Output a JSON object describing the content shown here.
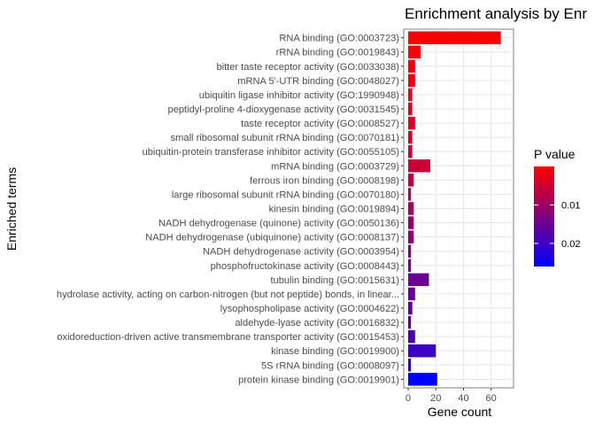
{
  "chart_data": {
    "type": "bar",
    "orientation": "horizontal",
    "title": "Enrichment analysis by Enr",
    "xlabel": "Gene count",
    "ylabel": "Enriched terms",
    "xlim": [
      0,
      73
    ],
    "xticks": [
      0,
      20,
      40,
      60
    ],
    "grid": true,
    "categories": [
      "RNA binding (GO:0003723)",
      "rRNA binding (GO:0019843)",
      "bitter taste receptor activity (GO:0033038)",
      "mRNA 5'-UTR binding (GO:0048027)",
      "ubiquitin ligase inhibitor activity (GO:1990948)",
      "peptidyl-proline 4-dioxygenase activity (GO:0031545)",
      "taste receptor activity (GO:0008527)",
      "small ribosomal subunit rRNA binding (GO:0070181)",
      "ubiquitin-protein transferase inhibitor activity (GO:0055105)",
      "mRNA binding (GO:0003729)",
      "ferrous iron binding (GO:0008198)",
      "large ribosomal subunit rRNA binding (GO:0070180)",
      "kinesin binding (GO:0019894)",
      "NADH dehydrogenase (quinone) activity (GO:0050136)",
      "NADH dehydrogenase (ubiquinone) activity (GO:0008137)",
      "NADH dehydrogenase activity (GO:0003954)",
      "phosphofructokinase activity (GO:0008443)",
      "tubulin binding (GO:0015631)",
      "hydrolase activity, acting on carbon-nitrogen (but not peptide) bonds, in linear...",
      "lysophospholipase activity (GO:0004622)",
      "aldehyde-lyase activity (GO:0016832)",
      "oxidoreduction-driven active transmembrane transporter activity (GO:0015453)",
      "kinase binding (GO:0019900)",
      "5S rRNA binding (GO:0008097)",
      "protein kinase binding (GO:0019901)"
    ],
    "values": [
      67,
      9,
      5,
      5,
      3,
      3,
      5,
      3,
      3,
      16,
      4,
      2,
      4,
      4,
      4,
      2,
      2,
      15,
      5,
      3,
      2,
      5,
      20,
      2,
      21
    ],
    "pvalues": [
      0.0001,
      0.0005,
      0.0012,
      0.0018,
      0.0025,
      0.0035,
      0.004,
      0.0045,
      0.005,
      0.0055,
      0.0065,
      0.0075,
      0.009,
      0.011,
      0.0115,
      0.013,
      0.014,
      0.015,
      0.0155,
      0.0165,
      0.017,
      0.018,
      0.02,
      0.022,
      0.026
    ],
    "legend": {
      "title": "P value",
      "placement": "right",
      "ticks": [
        0.01,
        0.02
      ],
      "domain": [
        0.0,
        0.026
      ],
      "color_low": "#FF0000",
      "color_high": "#0000FF"
    }
  }
}
